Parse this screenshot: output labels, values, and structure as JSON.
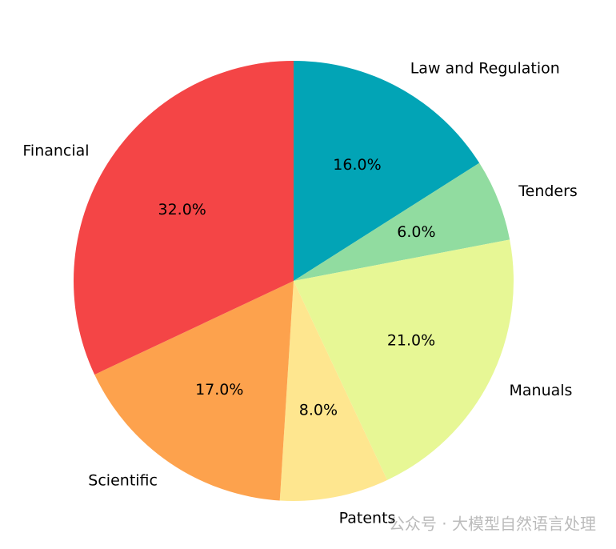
{
  "chart_data": {
    "type": "pie",
    "categories": [
      "Law and Regulation",
      "Tenders",
      "Manuals",
      "Patents",
      "Scientific",
      "Financial"
    ],
    "values": [
      16,
      6,
      21,
      8,
      17,
      32
    ],
    "value_labels": [
      "16.0%",
      "6.0%",
      "21.0%",
      "8.0%",
      "17.0%",
      "32.0%"
    ],
    "colors": [
      "#02a4b6",
      "#91dca0",
      "#e7f795",
      "#fee68f",
      "#fda24d",
      "#f44546"
    ],
    "watermark": "公众号 · 大模型自然语言处理"
  }
}
